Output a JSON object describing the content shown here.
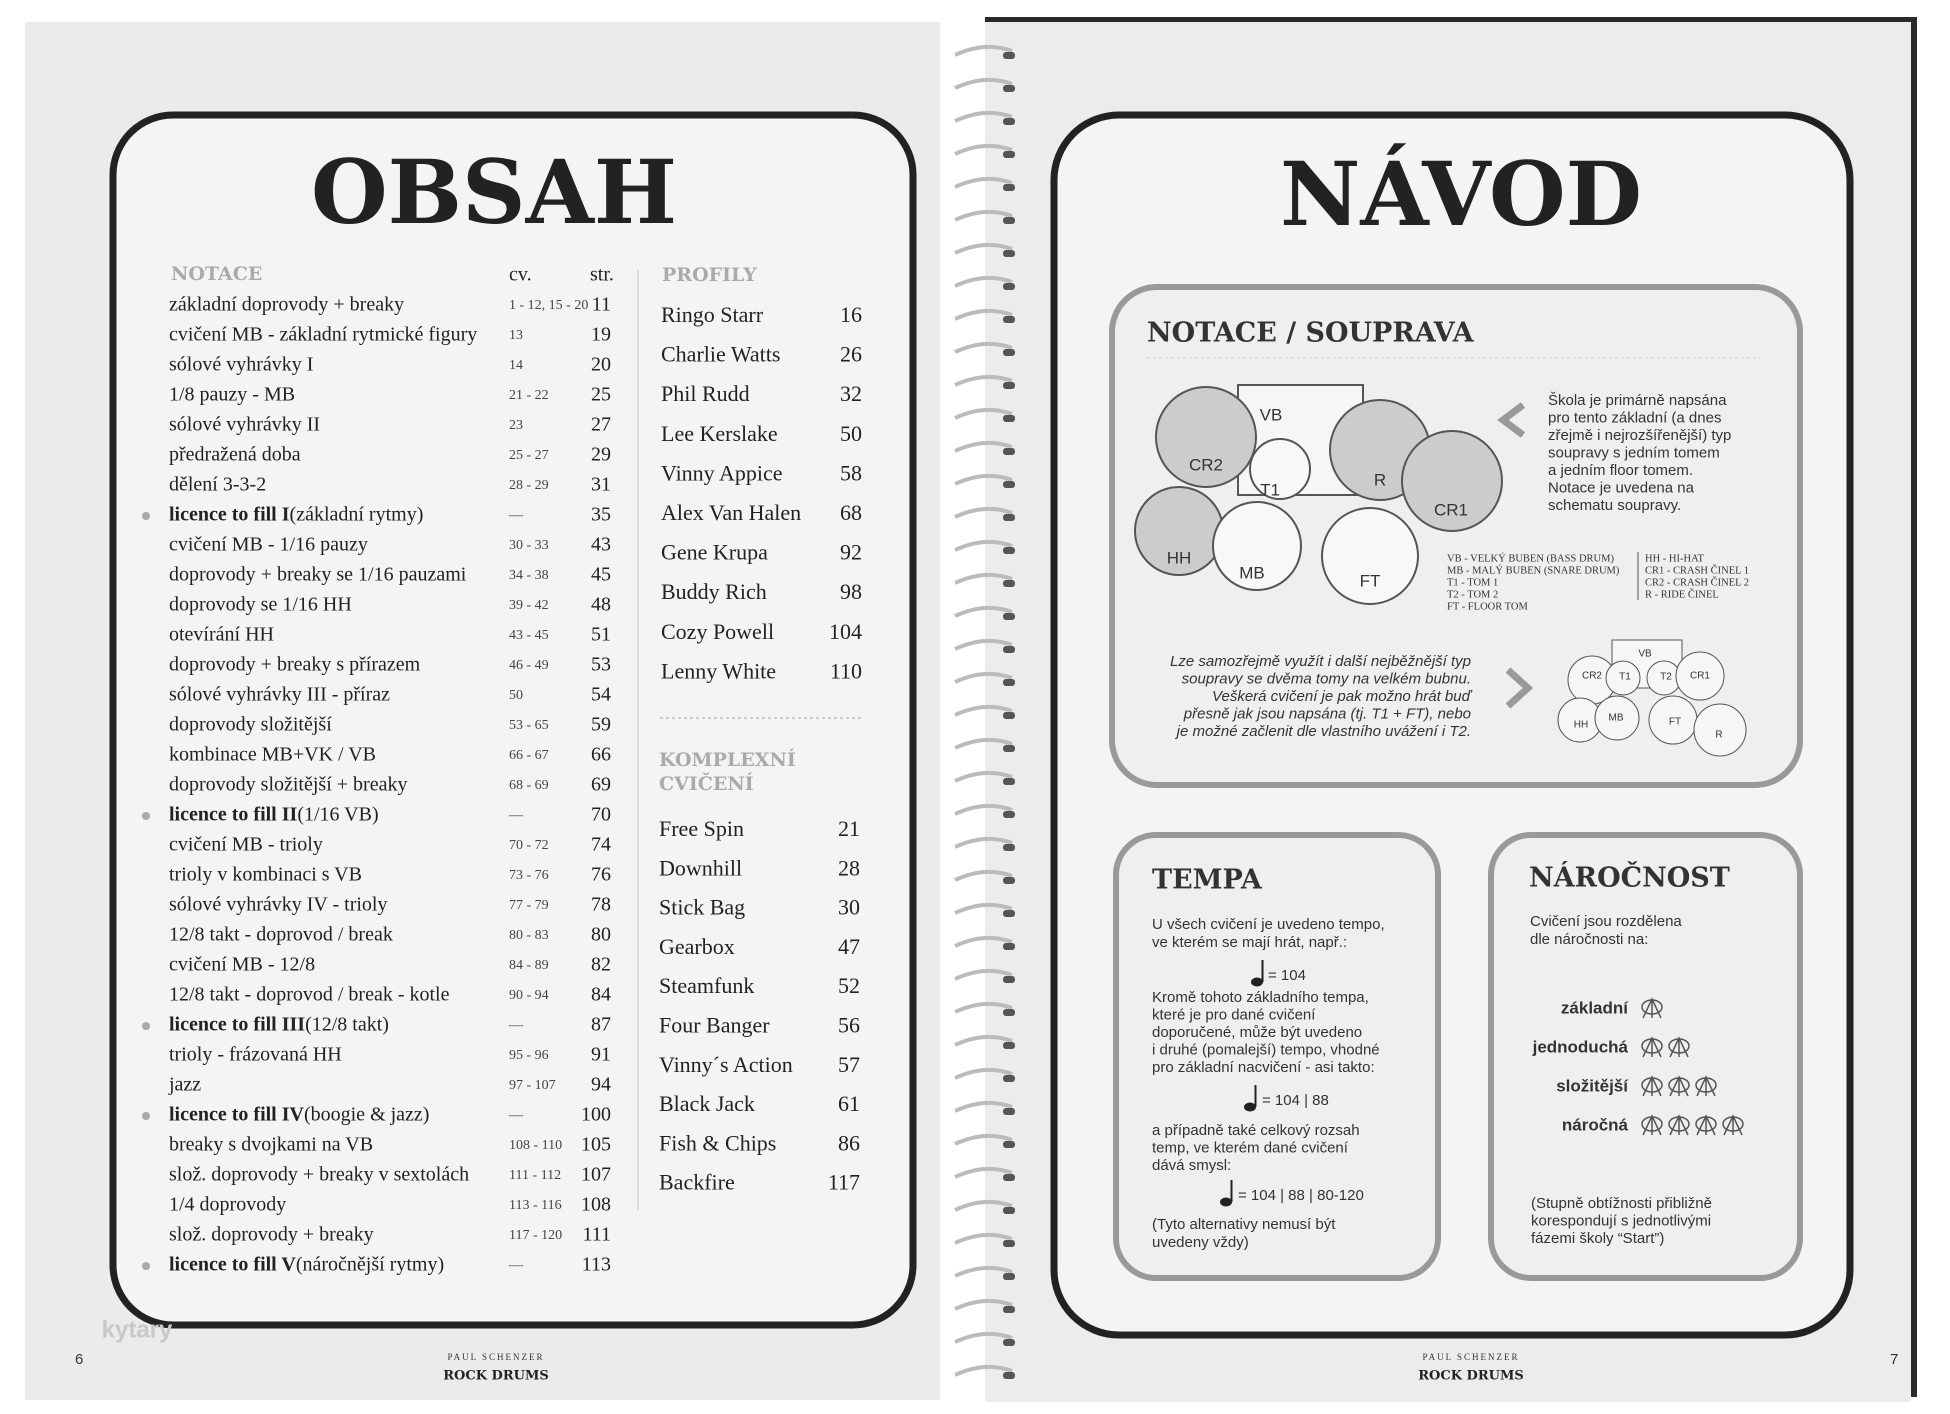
{
  "left_page": {
    "title": "OBSAH",
    "notace": {
      "header": "NOTACE",
      "col_cv": "cv.",
      "col_str": "str.",
      "rows": [
        {
          "text": "základní doprovody + breaky",
          "cv": "1 - 12, 15 - 20",
          "str": "11"
        },
        {
          "text": "cvičení MB - základní rytmické figury",
          "cv": "13",
          "str": "19"
        },
        {
          "text": "sólové vyhrávky I",
          "cv": "14",
          "str": "20"
        },
        {
          "text": "1/8 pauzy - MB",
          "cv": "21 - 22",
          "str": "25"
        },
        {
          "text": "sólové vyhrávky II",
          "cv": "23",
          "str": "27"
        },
        {
          "text": "předražená doba",
          "cv": "25 - 27",
          "str": "29"
        },
        {
          "text": "dělení 3-3-2",
          "cv": "28 - 29",
          "str": "31"
        },
        {
          "bold": "licence to fill I",
          "text": " (základní rytmy)",
          "cv": "—",
          "str": "35"
        },
        {
          "text": "cvičení MB - 1/16 pauzy",
          "cv": "30 - 33",
          "str": "43"
        },
        {
          "text": "doprovody + breaky se 1/16 pauzami",
          "cv": "34 - 38",
          "str": "45"
        },
        {
          "text": "doprovody se 1/16 HH",
          "cv": "39 - 42",
          "str": "48"
        },
        {
          "text": "otevírání HH",
          "cv": "43 - 45",
          "str": "51"
        },
        {
          "text": "doprovody + breaky s přírazem",
          "cv": "46 - 49",
          "str": "53"
        },
        {
          "text": "sólové vyhrávky III - příraz",
          "cv": "50",
          "str": "54"
        },
        {
          "text": "doprovody složitější",
          "cv": "53 - 65",
          "str": "59"
        },
        {
          "text": "kombinace MB+VK / VB",
          "cv": "66 - 67",
          "str": "66"
        },
        {
          "text": "doprovody složitější + breaky",
          "cv": "68 - 69",
          "str": "69"
        },
        {
          "bold": "licence to fill II",
          "text": " (1/16 VB)",
          "cv": "—",
          "str": "70"
        },
        {
          "text": "cvičení MB - trioly",
          "cv": "70 - 72",
          "str": "74"
        },
        {
          "text": "trioly v kombinaci s VB",
          "cv": "73 - 76",
          "str": "76"
        },
        {
          "text": "sólové vyhrávky IV - trioly",
          "cv": "77 - 79",
          "str": "78"
        },
        {
          "text": "12/8 takt - doprovod / break",
          "cv": "80 - 83",
          "str": "80"
        },
        {
          "text": "cvičení MB - 12/8",
          "cv": "84 - 89",
          "str": "82"
        },
        {
          "text": "12/8 takt - doprovod / break - kotle",
          "cv": "90 - 94",
          "str": "84"
        },
        {
          "bold": "licence to fill III",
          "text": " (12/8 takt)",
          "cv": "—",
          "str": "87"
        },
        {
          "text": "trioly - frázovaná HH",
          "cv": "95 - 96",
          "str": "91"
        },
        {
          "text": "jazz",
          "cv": "97 - 107",
          "str": "94"
        },
        {
          "bold": "licence to fill IV",
          "text": " (boogie & jazz)",
          "cv": "—",
          "str": "100"
        },
        {
          "text": "breaky s dvojkami na VB",
          "cv": "108 - 110",
          "str": "105"
        },
        {
          "text": "slož. doprovody + breaky v sextolách",
          "cv": "111 - 112",
          "str": "107"
        },
        {
          "text": "1/4 doprovody",
          "cv": "113 - 116",
          "str": "108"
        },
        {
          "text": "slož. doprovody + breaky",
          "cv": "117 - 120",
          "str": "111"
        },
        {
          "bold": "licence to fill V",
          "text": " (náročnější rytmy)",
          "cv": "—",
          "str": "113"
        }
      ]
    },
    "profily": {
      "header": "PROFILY",
      "items": [
        [
          "Ringo Starr",
          "16"
        ],
        [
          "Charlie Watts",
          "26"
        ],
        [
          "Phil Rudd",
          "32"
        ],
        [
          "Lee Kerslake",
          "50"
        ],
        [
          "Vinny Appice",
          "58"
        ],
        [
          "Alex Van Halen",
          "68"
        ],
        [
          "Gene Krupa",
          "92"
        ],
        [
          "Buddy Rich",
          "98"
        ],
        [
          "Cozy Powell",
          "104"
        ],
        [
          "Lenny White",
          "110"
        ]
      ]
    },
    "komplexni": {
      "header": [
        "KOMPLEXNÍ",
        "CVIČENÍ"
      ],
      "items": [
        [
          "Free Spin",
          "21"
        ],
        [
          "Downhill",
          "28"
        ],
        [
          "Stick Bag",
          "30"
        ],
        [
          "Gearbox",
          "47"
        ],
        [
          "Steamfunk",
          "52"
        ],
        [
          "Four Banger",
          "56"
        ],
        [
          "Vinny´s Action",
          "57"
        ],
        [
          "Black Jack",
          "61"
        ],
        [
          "Fish & Chips",
          "86"
        ],
        [
          "Backfire",
          "117"
        ]
      ]
    },
    "footer": {
      "page": "6",
      "author": "PAUL SCHENZER",
      "book": "ROCK DRUMS"
    },
    "watermark": "kytary"
  },
  "right_page": {
    "title": "NÁVOD",
    "notace": {
      "title": "NOTACE / SOUPRAVA",
      "text": [
        "Škola je primárně napsána",
        "pro tento základní (a dnes",
        "zřejmě i nejrozšířenější) typ",
        "soupravy s jedním tomem",
        "a jedním floor tomem.",
        "Notace je uvedena na",
        "schematu soupravy."
      ],
      "drums": [
        "CR2",
        "VB",
        "T1",
        "R",
        "CR1",
        "HH",
        "MB",
        "FT"
      ],
      "legend_left": [
        "VB - VELKÝ BUBEN (BASS DRUM)",
        "MB - MALÝ BUBEN (SNARE DRUM)",
        "T1 - TOM 1",
        "T2 - TOM 2",
        "FT - FLOOR TOM"
      ],
      "legend_right": [
        "HH - HI-HAT",
        "CR1 - CRASH ČINEL 1",
        "CR2 - CRASH ČINEL 2",
        "R - RIDE ČINEL"
      ],
      "alt_text": [
        "Lze samozřejmě využít i další nejběžnější typ",
        "soupravy se dvěma tomy na velkém bubnu.",
        "Veškerá cvičení je pak možno hrát buď",
        "přesně jak jsou napsána (tj. T1 + FT), nebo",
        "je možné začlenit dle vlastního uvážení i T2."
      ],
      "alt_drums": [
        "VB",
        "CR2",
        "T1",
        "T2",
        "CR1",
        "HH",
        "MB",
        "FT",
        "R"
      ]
    },
    "tempa": {
      "title": "TEMPA",
      "intro": [
        "U všech cvičení je uvedeno tempo,",
        "ve kterém se mají hrát, např.:"
      ],
      "tempo1": "= 104",
      "text2": [
        "Kromě tohoto základního tempa,",
        "které je pro dané cvičení",
        "doporučené, může být uvedeno",
        "i druhé (pomalejší) tempo, vhodné",
        "pro základní nacvičení - asi takto:"
      ],
      "tempo2": "= 104 | 88",
      "text3": [
        "a případně také celkový rozsah",
        "temp, ve kterém dané cvičení",
        "dává smysl:"
      ],
      "tempo3": "= 104 | 88 | 80-120",
      "note": [
        "(Tyto alternativy nemusí být",
        "uvedeny vždy)"
      ]
    },
    "narocnost": {
      "title": "NÁROČNOST",
      "intro": [
        "Cvičení jsou rozdělena",
        "dle náročnosti na:"
      ],
      "levels": [
        {
          "name": "základní",
          "icons": 1
        },
        {
          "name": "jednoduchá",
          "icons": 2
        },
        {
          "name": "složitější",
          "icons": 3
        },
        {
          "name": "náročná",
          "icons": 4
        }
      ],
      "note": [
        "(Stupně obtížnosti přibližně",
        "korespondují s jednotlivými",
        "fázemi školy “Start”)"
      ]
    },
    "footer": {
      "page": "7",
      "author": "PAUL SCHENZER",
      "book": "ROCK DRUMS"
    }
  }
}
